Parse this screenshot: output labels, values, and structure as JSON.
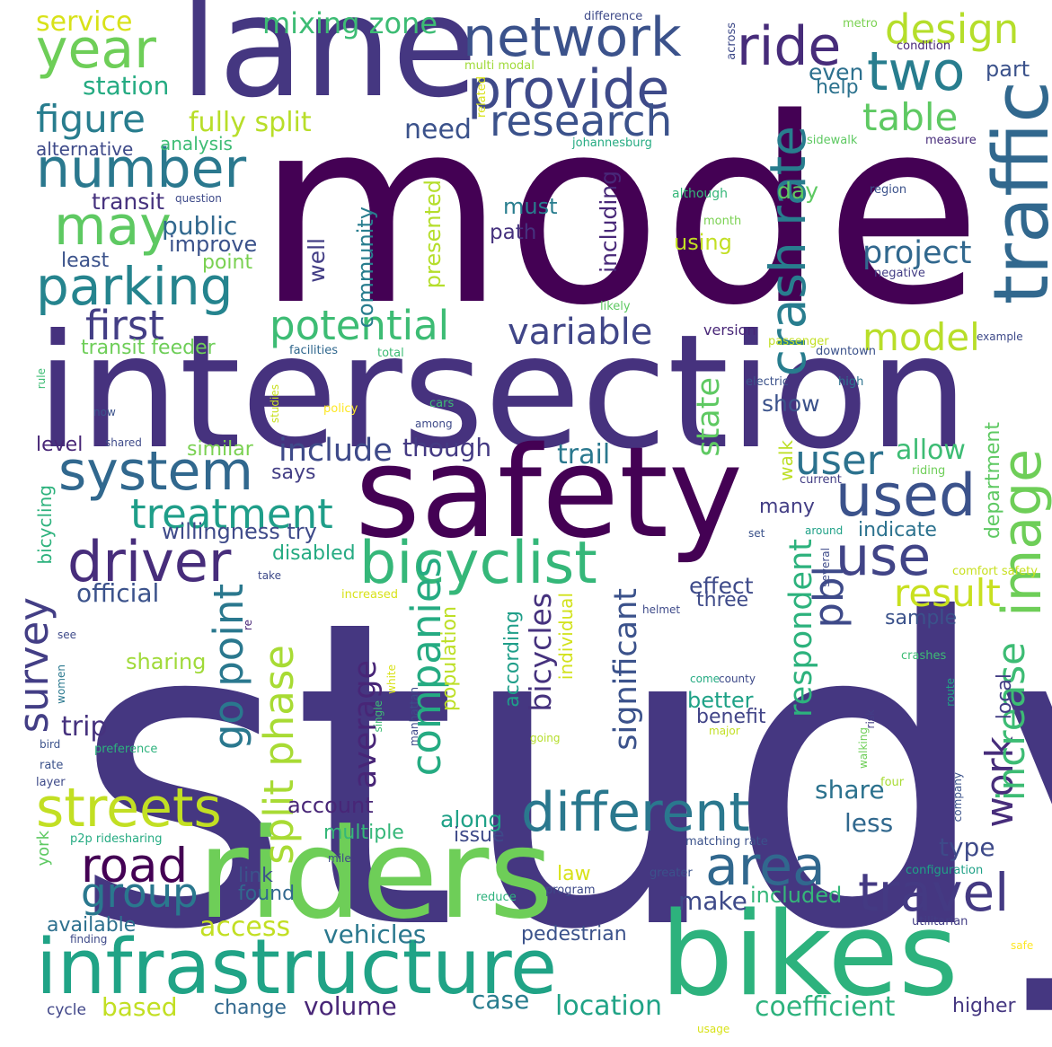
{
  "words": [
    {
      "text": "study",
      "color": "#453781"
    },
    {
      "text": "mode",
      "color": "#440154"
    },
    {
      "text": "intersection",
      "color": "#46327e"
    },
    {
      "text": "safety",
      "color": "#440154"
    },
    {
      "text": "riders",
      "color": "#6ece58"
    },
    {
      "text": "bikes",
      "color": "#2db27d"
    },
    {
      "text": "lane",
      "color": "#453781"
    },
    {
      "text": "infrastructure",
      "color": "#20a386"
    },
    {
      "text": "network",
      "color": "#3b528b"
    },
    {
      "text": "provide",
      "color": "#3e4a89"
    },
    {
      "text": "ride",
      "color": "#472c7a"
    },
    {
      "text": "two",
      "color": "#287d8e"
    },
    {
      "text": "design",
      "color": "#b5de2b"
    },
    {
      "text": "year",
      "color": "#6ece58"
    },
    {
      "text": "research",
      "color": "#3b528b"
    },
    {
      "text": "table",
      "color": "#5ec962"
    },
    {
      "text": "traffic",
      "color": "#31688e"
    },
    {
      "text": "number",
      "color": "#2a788e"
    },
    {
      "text": "figure",
      "color": "#287d8e"
    },
    {
      "text": "may",
      "color": "#5ec962"
    },
    {
      "text": "parking",
      "color": "#25848e"
    },
    {
      "text": "system",
      "color": "#31688e"
    },
    {
      "text": "used",
      "color": "#3b528b"
    },
    {
      "text": "use",
      "color": "#414487"
    },
    {
      "text": "driver",
      "color": "#472d7b"
    },
    {
      "text": "bicyclist",
      "color": "#35b779"
    },
    {
      "text": "streets",
      "color": "#c2df23"
    },
    {
      "text": "different",
      "color": "#2a788e"
    },
    {
      "text": "road",
      "color": "#440154"
    },
    {
      "text": "area",
      "color": "#31688e"
    },
    {
      "text": "travel",
      "color": "#443a83"
    },
    {
      "text": "group",
      "color": "#2a788e"
    },
    {
      "text": "potential",
      "color": "#3dbc74"
    },
    {
      "text": "variable",
      "color": "#404688"
    },
    {
      "text": "first",
      "color": "#433e85"
    },
    {
      "text": "model",
      "color": "#b8de29"
    },
    {
      "text": "treatment",
      "color": "#1f9e89"
    },
    {
      "text": "include",
      "color": "#3e4a89"
    },
    {
      "text": "user",
      "color": "#2c728e"
    },
    {
      "text": "image",
      "color": "#6ece58"
    },
    {
      "text": "result",
      "color": "#c8e020"
    },
    {
      "text": "crash rate",
      "color": "#287d8e"
    },
    {
      "text": "project",
      "color": "#31688e"
    },
    {
      "text": "state",
      "color": "#5ec962"
    },
    {
      "text": "go point",
      "color": "#2a788e"
    },
    {
      "text": "split phase",
      "color": "#a8db34"
    },
    {
      "text": "companies",
      "color": "#25ab82"
    },
    {
      "text": "survey",
      "color": "#433e85"
    },
    {
      "text": "work",
      "color": "#472d7b"
    },
    {
      "text": "increase",
      "color": "#3dbc74"
    },
    {
      "text": "pbl",
      "color": "#3e4a89"
    },
    {
      "text": "significant",
      "color": "#3b528b"
    },
    {
      "text": "bicycles",
      "color": "#46327e"
    },
    {
      "text": "average",
      "color": "#482677"
    },
    {
      "text": "respondent",
      "color": "#2db27d"
    },
    {
      "text": "mixing zone",
      "color": "#3dbc74"
    },
    {
      "text": "service",
      "color": "#d8e219"
    },
    {
      "text": "station",
      "color": "#25ab82"
    },
    {
      "text": "fully split",
      "color": "#b8de29"
    },
    {
      "text": "need",
      "color": "#3b528b"
    },
    {
      "text": "even",
      "color": "#2d708e"
    },
    {
      "text": "help",
      "color": "#2c728e"
    },
    {
      "text": "part",
      "color": "#3b528b"
    },
    {
      "text": "day",
      "color": "#5ec962"
    },
    {
      "text": "must",
      "color": "#287d8e"
    },
    {
      "text": "path",
      "color": "#46327e"
    },
    {
      "text": "using",
      "color": "#c2df23"
    },
    {
      "text": "public",
      "color": "#31688e"
    },
    {
      "text": "transit",
      "color": "#46327e"
    },
    {
      "text": "improve",
      "color": "#3b528b"
    },
    {
      "text": "least",
      "color": "#3b528b"
    },
    {
      "text": "point",
      "color": "#7ad151"
    },
    {
      "text": "well",
      "color": "#433e85"
    },
    {
      "text": "community",
      "color": "#287d8e"
    },
    {
      "text": "presented",
      "color": "#b5de2b"
    },
    {
      "text": "including",
      "color": "#482878"
    },
    {
      "text": "alternative",
      "color": "#3e4a89"
    },
    {
      "text": "analysis",
      "color": "#3dbc74"
    },
    {
      "text": "transit feeder",
      "color": "#6ece58"
    },
    {
      "text": "though",
      "color": "#443a83"
    },
    {
      "text": "trail",
      "color": "#2a788e"
    },
    {
      "text": "allow",
      "color": "#3dbc74"
    },
    {
      "text": "show",
      "color": "#3b528b"
    },
    {
      "text": "level",
      "color": "#482677"
    },
    {
      "text": "similar",
      "color": "#7ad151"
    },
    {
      "text": "says",
      "color": "#433e85"
    },
    {
      "text": "willingness try",
      "color": "#3e4a89"
    },
    {
      "text": "disabled",
      "color": "#25ab82"
    },
    {
      "text": "official",
      "color": "#3b528b"
    },
    {
      "text": "indicate",
      "color": "#2c728e"
    },
    {
      "text": "department",
      "color": "#5ec962"
    },
    {
      "text": "walk",
      "color": "#bddf26"
    },
    {
      "text": "many",
      "color": "#433e85"
    },
    {
      "text": "effect",
      "color": "#3e4a89"
    },
    {
      "text": "three",
      "color": "#3e4a89"
    },
    {
      "text": "sample",
      "color": "#3b528b"
    },
    {
      "text": "sharing",
      "color": "#a0da39"
    },
    {
      "text": "trip",
      "color": "#46327e"
    },
    {
      "text": "better",
      "color": "#1fa287"
    },
    {
      "text": "benefit",
      "color": "#414487"
    },
    {
      "text": "local",
      "color": "#433e85"
    },
    {
      "text": "according",
      "color": "#1f9e89"
    },
    {
      "text": "population",
      "color": "#bddf26"
    },
    {
      "text": "individual",
      "color": "#d2e21b"
    },
    {
      "text": "account",
      "color": "#482677"
    },
    {
      "text": "along",
      "color": "#1fa187"
    },
    {
      "text": "multiple",
      "color": "#35b779"
    },
    {
      "text": "issue",
      "color": "#3e4a89"
    },
    {
      "text": "share",
      "color": "#2c728e"
    },
    {
      "text": "less",
      "color": "#31688e"
    },
    {
      "text": "type",
      "color": "#3e4a89"
    },
    {
      "text": "access",
      "color": "#c2df23"
    },
    {
      "text": "found",
      "color": "#31688e"
    },
    {
      "text": "make",
      "color": "#3e4a89"
    },
    {
      "text": "included",
      "color": "#35b779"
    },
    {
      "text": "law",
      "color": "#d8e219"
    },
    {
      "text": "link",
      "color": "#3b528b"
    },
    {
      "text": "available",
      "color": "#2d708e"
    },
    {
      "text": "vehicles",
      "color": "#2a788e"
    },
    {
      "text": "pedestrian",
      "color": "#3b528b"
    },
    {
      "text": "based",
      "color": "#c2df23"
    },
    {
      "text": "change",
      "color": "#31688e"
    },
    {
      "text": "volume",
      "color": "#482677"
    },
    {
      "text": "case",
      "color": "#287d8e"
    },
    {
      "text": "location",
      "color": "#20a386"
    },
    {
      "text": "coefficient",
      "color": "#2db27d"
    },
    {
      "text": "higher",
      "color": "#453781"
    },
    {
      "text": "cycle",
      "color": "#404688"
    },
    {
      "text": "bicycling",
      "color": "#2db27d"
    },
    {
      "text": "york",
      "color": "#5ec962"
    },
    {
      "text": "difference",
      "color": "#3e4a89"
    },
    {
      "text": "metro",
      "color": "#7ad151"
    },
    {
      "text": "condition",
      "color": "#482677"
    },
    {
      "text": "multi modal",
      "color": "#a0da39"
    },
    {
      "text": "across",
      "color": "#3e4a89"
    },
    {
      "text": "related",
      "color": "#d8e219"
    },
    {
      "text": "johannesburg",
      "color": "#25ab82"
    },
    {
      "text": "sidewalk",
      "color": "#5ec962"
    },
    {
      "text": "measure",
      "color": "#472d7b"
    },
    {
      "text": "although",
      "color": "#35b779"
    },
    {
      "text": "month",
      "color": "#7ad151"
    },
    {
      "text": "region",
      "color": "#3b528b"
    },
    {
      "text": "question",
      "color": "#3e4a89"
    },
    {
      "text": "negative",
      "color": "#433e85"
    },
    {
      "text": "likely",
      "color": "#5ec962"
    },
    {
      "text": "version",
      "color": "#482677"
    },
    {
      "text": "passenger",
      "color": "#c2df23"
    },
    {
      "text": "downtown",
      "color": "#3b528b"
    },
    {
      "text": "example",
      "color": "#3e4a89"
    },
    {
      "text": "facilities",
      "color": "#31688e"
    },
    {
      "text": "total",
      "color": "#3dbc74"
    },
    {
      "text": "electric",
      "color": "#3b528b"
    },
    {
      "text": "high",
      "color": "#2c728e"
    },
    {
      "text": "rule",
      "color": "#3dbc74"
    },
    {
      "text": "studies",
      "color": "#c8e020"
    },
    {
      "text": "policy",
      "color": "#fde725"
    },
    {
      "text": "cars",
      "color": "#3dbc74"
    },
    {
      "text": "among",
      "color": "#3e4a89"
    },
    {
      "text": "now",
      "color": "#3b528b"
    },
    {
      "text": "shared",
      "color": "#3e4a89"
    },
    {
      "text": "riding",
      "color": "#6ece58"
    },
    {
      "text": "current",
      "color": "#433e85"
    },
    {
      "text": "set",
      "color": "#3b528b"
    },
    {
      "text": "around",
      "color": "#1fa187"
    },
    {
      "text": "several",
      "color": "#3e4a89"
    },
    {
      "text": "comfort safety",
      "color": "#c8e020"
    },
    {
      "text": "take",
      "color": "#3e4a89"
    },
    {
      "text": "increased",
      "color": "#d8e219"
    },
    {
      "text": "helmet",
      "color": "#3e4a89"
    },
    {
      "text": "re",
      "color": "#482677"
    },
    {
      "text": "see",
      "color": "#3e4a89"
    },
    {
      "text": "women",
      "color": "#2a788e"
    },
    {
      "text": "white",
      "color": "#d8e219"
    },
    {
      "text": "single",
      "color": "#3dbc74"
    },
    {
      "text": "manhattan",
      "color": "#3e4a89"
    },
    {
      "text": "come",
      "color": "#25ab82"
    },
    {
      "text": "county",
      "color": "#3e4a89"
    },
    {
      "text": "crashes",
      "color": "#3dbc74"
    },
    {
      "text": "route",
      "color": "#20a386"
    },
    {
      "text": "bird",
      "color": "#3b528b"
    },
    {
      "text": "preference",
      "color": "#2db27d"
    },
    {
      "text": "going",
      "color": "#b5de2b"
    },
    {
      "text": "major",
      "color": "#c2df23"
    },
    {
      "text": "risk",
      "color": "#433e85"
    },
    {
      "text": "walking",
      "color": "#6ece58"
    },
    {
      "text": "rate",
      "color": "#3b528b"
    },
    {
      "text": "layer",
      "color": "#3e4a89"
    },
    {
      "text": "four",
      "color": "#a8db34"
    },
    {
      "text": "company",
      "color": "#3b528b"
    },
    {
      "text": "p2p ridesharing",
      "color": "#25ab82"
    },
    {
      "text": "matching rate",
      "color": "#3b528b"
    },
    {
      "text": "mile",
      "color": "#3e4a89"
    },
    {
      "text": "greater",
      "color": "#3b528b"
    },
    {
      "text": "configuration",
      "color": "#1fa187"
    },
    {
      "text": "reduce",
      "color": "#2db27d"
    },
    {
      "text": "program",
      "color": "#3e4a89"
    },
    {
      "text": "utilitarian",
      "color": "#433e85"
    },
    {
      "text": "finding",
      "color": "#3e4a89"
    },
    {
      "text": "safe",
      "color": "#fde725"
    },
    {
      "text": "usage",
      "color": "#d8e219"
    }
  ]
}
